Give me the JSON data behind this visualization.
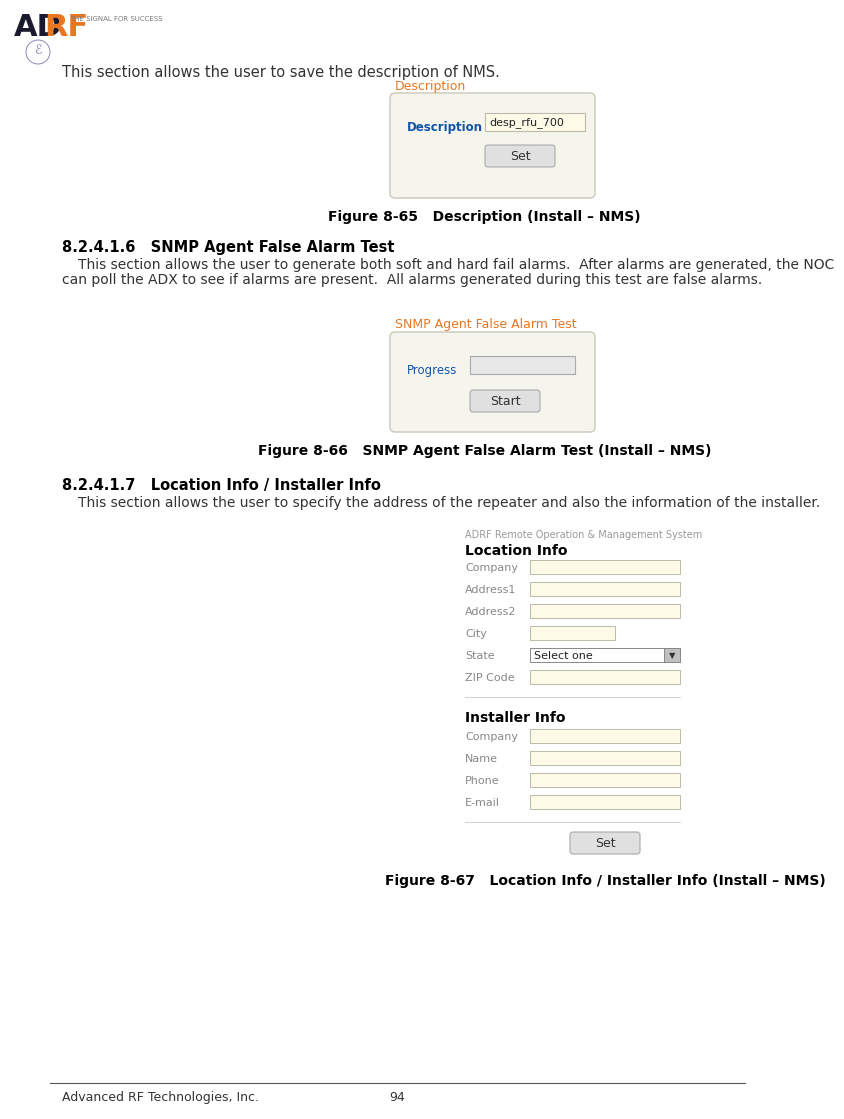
{
  "page_width": 7.75,
  "page_height": 10.99,
  "bg_color": "#ffffff",
  "logo_tagline": "THE SIGNAL FOR SUCCESS",
  "footer_left": "Advanced RF Technologies, Inc.",
  "footer_center": "94",
  "section_intro": "This section allows the user to save the description of NMS.",
  "fig65_title_label": "Description",
  "fig65_field_label": "Description",
  "fig65_field_value": "desp_rfu_700",
  "fig65_button": "Set",
  "fig65_caption": "Figure 8-65   Description (Install – NMS)",
  "section_8216_heading": "8.2.4.1.6   SNMP Agent False Alarm Test",
  "section_8216_line1": "This section allows the user to generate both soft and hard fail alarms.  After alarms are generated, the NOC",
  "section_8216_line2": "can poll the ADX to see if alarms are present.  All alarms generated during this test are false alarms.",
  "fig66_title_label": "SNMP Agent False Alarm Test",
  "fig66_field_label": "Progress",
  "fig66_button": "Start",
  "fig66_caption": "Figure 8-66   SNMP Agent False Alarm Test (Install – NMS)",
  "section_8217_heading": "8.2.4.1.7   Location Info / Installer Info",
  "section_8217_body": "This section allows the user to specify the address of the repeater and also the information of the installer.",
  "fig67_top_label": "ADRF Remote Operation & Management System",
  "fig67_loc_heading": "Location Info",
  "fig67_loc_fields": [
    "Company",
    "Address1",
    "Address2",
    "City",
    "State",
    "ZIP Code"
  ],
  "fig67_state_value": "Select one",
  "fig67_inst_heading": "Installer Info",
  "fig67_inst_fields": [
    "Company",
    "Name",
    "Phone",
    "E-mail"
  ],
  "fig67_button": "Set",
  "fig67_caption": "Figure 8-67   Location Info / Installer Info (Install – NMS)",
  "orange_color": "#E87722",
  "heading_color": "#000000",
  "body_color": "#333333",
  "input_bg_yellow": "#fdfbe8",
  "input_bg_gray": "#e8e8e8",
  "input_border": "#aaaaaa",
  "button_bg": "#e0e0e0",
  "panel_bg": "#f5f5ee",
  "panel_border": "#c8c8b8"
}
